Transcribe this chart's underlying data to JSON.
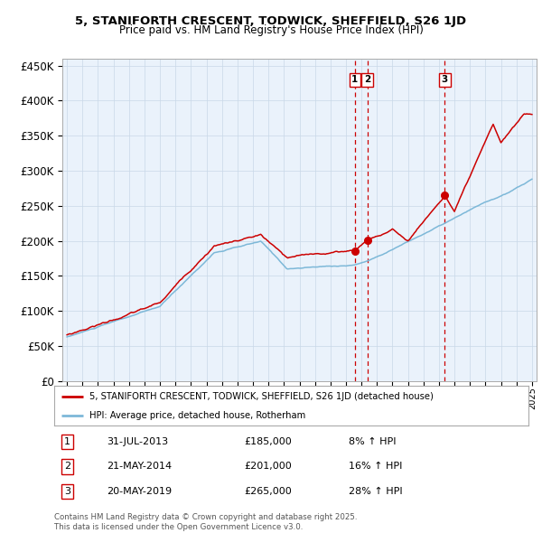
{
  "title": "5, STANIFORTH CRESCENT, TODWICK, SHEFFIELD, S26 1JD",
  "subtitle": "Price paid vs. HM Land Registry's House Price Index (HPI)",
  "hpi_color": "#7db8d8",
  "price_color": "#cc0000",
  "bg_color": "#ffffff",
  "plot_bg": "#eaf2fb",
  "grid_color": "#c8d8e8",
  "dashed_color": "#cc0000",
  "ylim": [
    0,
    460000
  ],
  "yticks": [
    0,
    50000,
    100000,
    150000,
    200000,
    250000,
    300000,
    350000,
    400000,
    450000
  ],
  "x_start_year": 1995,
  "x_end_year": 2025,
  "legend_house": "5, STANIFORTH CRESCENT, TODWICK, SHEFFIELD, S26 1JD (detached house)",
  "legend_hpi": "HPI: Average price, detached house, Rotherham",
  "transactions": [
    {
      "num": 1,
      "date": "31-JUL-2013",
      "price": 185000,
      "pct": "8%",
      "dir": "↑",
      "year": 2013.58
    },
    {
      "num": 2,
      "date": "21-MAY-2014",
      "price": 201000,
      "pct": "16%",
      "dir": "↑",
      "year": 2014.38
    },
    {
      "num": 3,
      "date": "20-MAY-2019",
      "price": 265000,
      "pct": "28%",
      "dir": "↑",
      "year": 2019.38
    }
  ],
  "footer1": "Contains HM Land Registry data © Crown copyright and database right 2025.",
  "footer2": "This data is licensed under the Open Government Licence v3.0."
}
